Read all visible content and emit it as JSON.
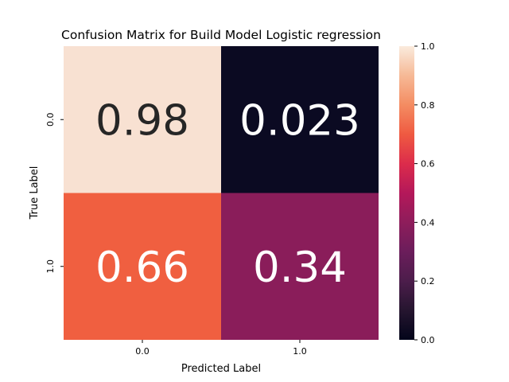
{
  "chart_data": {
    "type": "heatmap",
    "title": "Confusion Matrix for Build Model Logistic regression",
    "xlabel": "Predicted Label",
    "ylabel": "True Label",
    "x_categories": [
      "0.0",
      "1.0"
    ],
    "y_categories": [
      "0.0",
      "1.0"
    ],
    "values": [
      [
        0.98,
        0.023
      ],
      [
        0.66,
        0.34
      ]
    ],
    "annotations": [
      [
        "0.98",
        "0.023"
      ],
      [
        "0.66",
        "0.34"
      ]
    ],
    "colormap": "rocket",
    "colorbar": {
      "range": [
        0.0,
        1.0
      ],
      "ticks": [
        "0.0",
        "0.2",
        "0.4",
        "0.6",
        "0.8",
        "1.0"
      ]
    },
    "colors": {
      "cell_0_0": "#f8e1d2",
      "cell_0_1": "#0b0a22",
      "cell_1_0": "#f05f40",
      "cell_1_1": "#8a1d5a"
    }
  }
}
